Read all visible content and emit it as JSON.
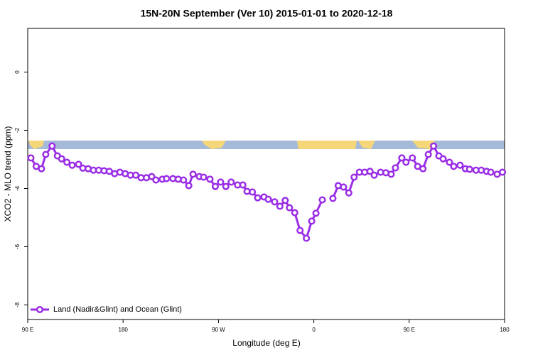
{
  "chart_data": {
    "type": "line",
    "title": "15N-20N September (Ver 10)   2015-01-01 to 2020-12-18",
    "x_label": "Longitude (deg E)",
    "y_label": "XCO2 - MLO trend (ppm)",
    "xlim": [
      90,
      540
    ],
    "ylim": [
      -8.5,
      1.5
    ],
    "xticks": [
      {
        "value": 90,
        "label": "90 E"
      },
      180,
      {
        "value": 270,
        "label": "90 W"
      },
      {
        "value": 360,
        "label": "0"
      },
      {
        "value": 450,
        "label": "90 E"
      },
      {
        "value": 540,
        "label": "180"
      }
    ],
    "yticks": [
      0,
      -2,
      -4,
      -6,
      -8
    ],
    "grid": false,
    "legend": "bottom-left",
    "series": [
      {
        "name": "Land (Nadir&Glint) and Ocean (Glint)",
        "color": "#9a2ee6",
        "x": [
          93,
          98,
          103,
          107,
          113,
          118,
          122,
          127,
          132,
          138,
          142,
          147,
          152,
          157,
          162,
          167,
          172,
          177,
          182,
          187,
          192,
          197,
          202,
          207,
          211,
          217,
          221,
          227,
          232,
          237,
          242,
          246,
          252,
          256,
          262,
          267,
          272,
          277,
          282,
          288,
          293,
          297,
          302,
          307,
          313,
          317,
          323,
          328,
          333,
          337,
          342,
          347,
          353,
          358,
          362,
          368,
          373,
          378,
          383,
          388,
          393,
          398,
          403,
          408,
          413,
          417,
          423,
          428,
          433,
          437,
          443,
          447,
          453,
          458,
          463,
          468,
          473,
          478,
          482,
          488,
          492,
          498,
          503,
          507,
          513,
          518,
          523,
          527,
          533,
          538
        ],
        "values": [
          -2.95,
          -3.24,
          -3.32,
          -2.83,
          -2.54,
          -2.88,
          -2.98,
          -3.1,
          -3.2,
          -3.17,
          -3.3,
          -3.32,
          -3.37,
          -3.37,
          -3.39,
          -3.41,
          -3.49,
          -3.44,
          -3.49,
          -3.54,
          -3.54,
          -3.63,
          -3.63,
          -3.59,
          -3.71,
          -3.68,
          -3.66,
          -3.66,
          -3.68,
          -3.71,
          -3.9,
          -3.51,
          -3.59,
          -3.61,
          -3.68,
          -3.93,
          -3.78,
          -3.93,
          -3.78,
          -3.88,
          -3.88,
          -4.1,
          -4.12,
          -4.32,
          -4.29,
          -4.37,
          -4.46,
          -4.61,
          -4.41,
          -4.66,
          -4.83,
          -5.44,
          -5.71,
          -5.12,
          -4.85,
          -4.39,
          null,
          -4.34,
          -3.9,
          -3.95,
          -4.15,
          -3.61,
          -3.44,
          -3.44,
          -3.41,
          -3.54,
          -3.44,
          -3.46,
          -3.51,
          -3.29,
          -2.95,
          -3.1,
          -2.95,
          -3.24,
          -3.32,
          -2.83,
          -2.54,
          -2.88,
          -2.98,
          -3.1,
          -3.24,
          -3.2,
          -3.32,
          -3.34,
          -3.37,
          -3.37,
          -3.41,
          -3.44,
          -3.51,
          -3.44
        ]
      }
    ]
  }
}
